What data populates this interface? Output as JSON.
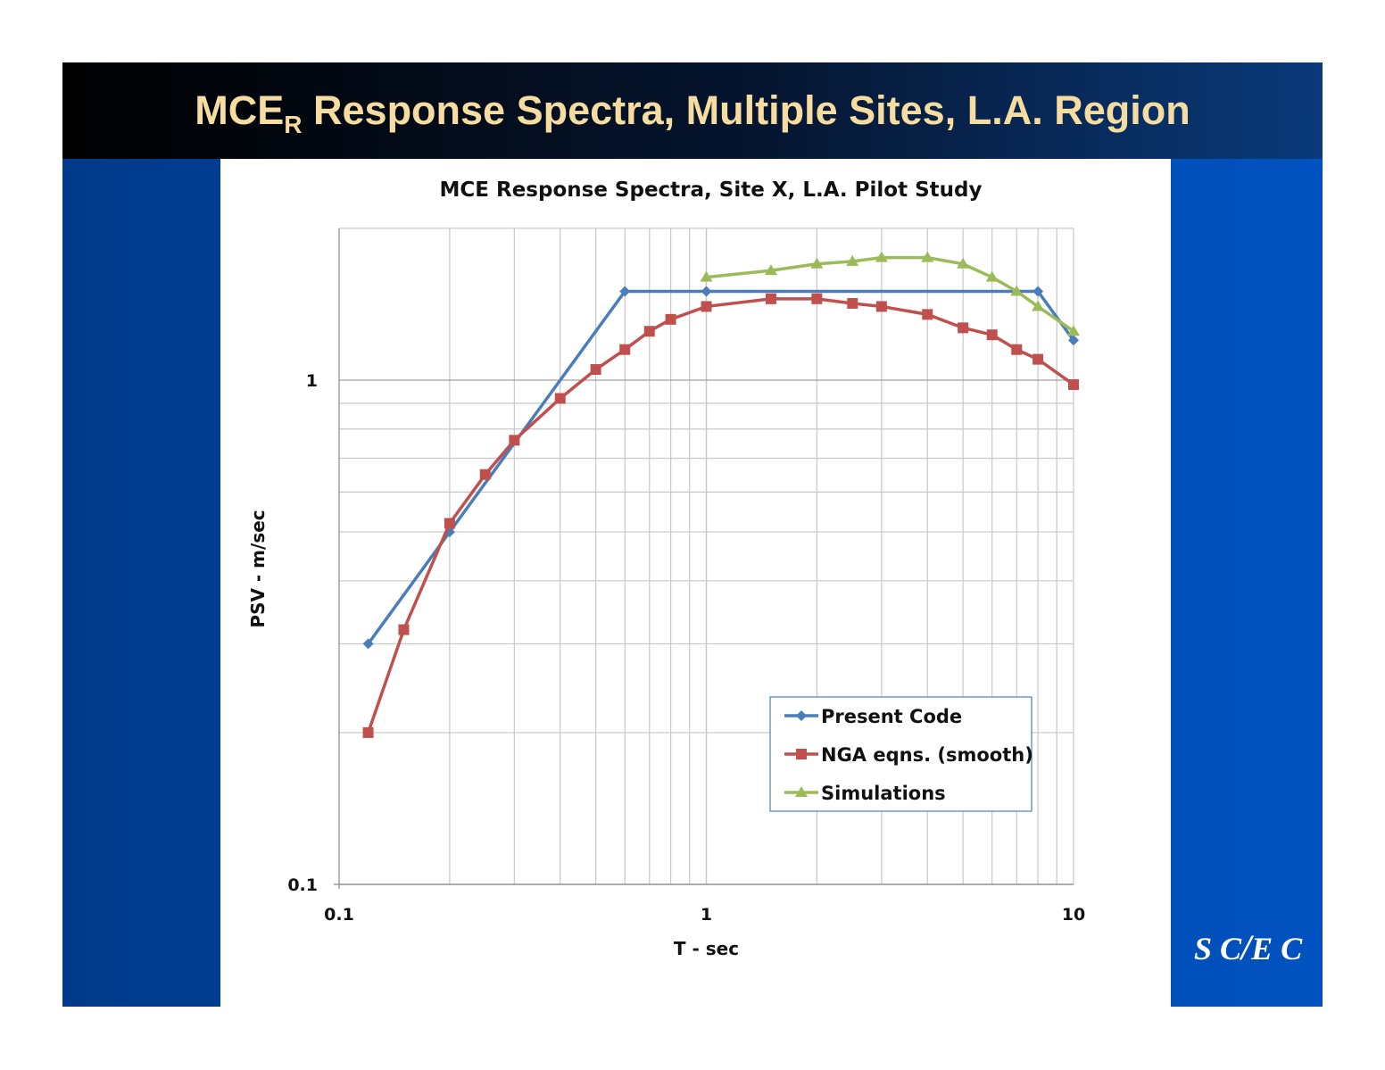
{
  "slide": {
    "title_main": "MCE",
    "title_sub": "R",
    "title_rest": " Response Spectra, Multiple Sites, L.A. Region",
    "logo": "SCEC"
  },
  "chart_data": {
    "type": "line",
    "title": "MCE Response Spectra, Site X, L.A. Pilot Study",
    "xlabel": "T - sec",
    "ylabel": "PSV - m/sec",
    "xscale": "log",
    "yscale": "log",
    "xlim": [
      0.1,
      10
    ],
    "ylim": [
      0.1,
      2
    ],
    "xticks": [
      "0.1",
      "1",
      "10"
    ],
    "yticks": [
      "0.1",
      "1"
    ],
    "grid": true,
    "legend_position": "bottom-right",
    "series": [
      {
        "name": "Present Code",
        "color": "#4a7ebb",
        "marker": "diamond",
        "x": [
          0.12,
          0.2,
          0.6,
          1,
          8,
          10
        ],
        "y": [
          0.3,
          0.5,
          1.5,
          1.5,
          1.5,
          1.2
        ]
      },
      {
        "name": "NGA eqns. (smooth)",
        "color": "#c0504d",
        "marker": "square",
        "x": [
          0.12,
          0.15,
          0.2,
          0.25,
          0.3,
          0.4,
          0.5,
          0.6,
          0.7,
          0.8,
          1,
          1.5,
          2,
          2.5,
          3,
          4,
          5,
          6,
          7,
          8,
          10
        ],
        "y": [
          0.2,
          0.32,
          0.52,
          0.65,
          0.76,
          0.92,
          1.05,
          1.15,
          1.25,
          1.32,
          1.4,
          1.45,
          1.45,
          1.42,
          1.4,
          1.35,
          1.27,
          1.23,
          1.15,
          1.1,
          0.98
        ]
      },
      {
        "name": "Simulations",
        "color": "#9bbb59",
        "marker": "triangle",
        "x": [
          1,
          1.5,
          2,
          2.5,
          3,
          4,
          5,
          6,
          7,
          8,
          10
        ],
        "y": [
          1.6,
          1.65,
          1.7,
          1.72,
          1.75,
          1.75,
          1.7,
          1.6,
          1.5,
          1.4,
          1.25
        ]
      }
    ]
  }
}
